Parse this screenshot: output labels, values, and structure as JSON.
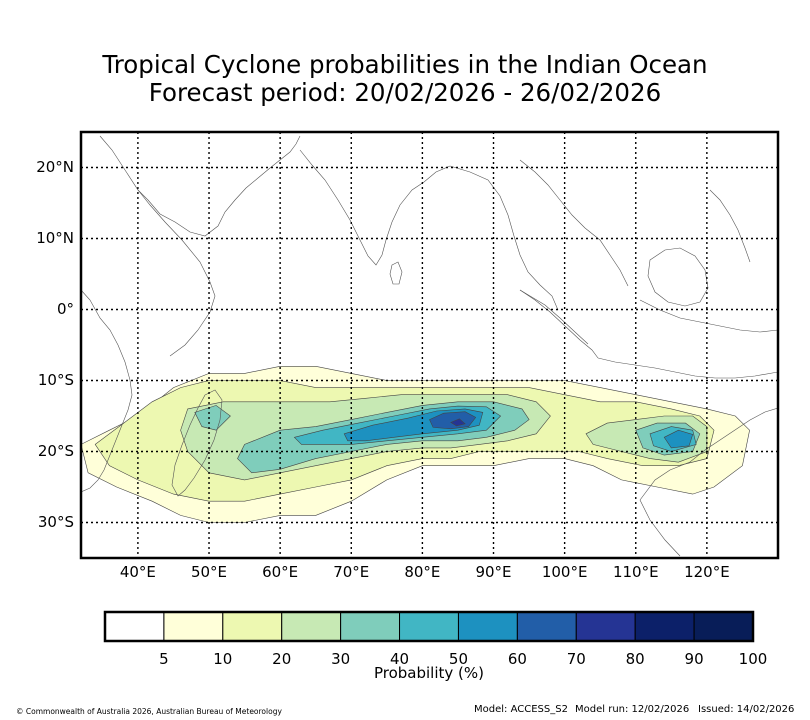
{
  "title": {
    "line1": "Tropical Cyclone probabilities in the Indian Ocean",
    "line2": "Forecast period: 20/02/2026 - 26/02/2026"
  },
  "map": {
    "lon_range": [
      32,
      130
    ],
    "lat_range": [
      -35,
      25
    ],
    "lon_ticks": [
      {
        "lon": 40,
        "label": "40°E"
      },
      {
        "lon": 50,
        "label": "50°E"
      },
      {
        "lon": 60,
        "label": "60°E"
      },
      {
        "lon": 70,
        "label": "70°E"
      },
      {
        "lon": 80,
        "label": "80°E"
      },
      {
        "lon": 90,
        "label": "90°E"
      },
      {
        "lon": 100,
        "label": "100°E"
      },
      {
        "lon": 110,
        "label": "110°E"
      },
      {
        "lon": 120,
        "label": "120°E"
      }
    ],
    "lat_ticks": [
      {
        "lat": 20,
        "label": "20°N"
      },
      {
        "lat": 10,
        "label": "10°N"
      },
      {
        "lat": 0,
        "label": "0°"
      },
      {
        "lat": -10,
        "label": "10°S"
      },
      {
        "lat": -20,
        "label": "20°S"
      },
      {
        "lat": -30,
        "label": "30°S"
      }
    ],
    "probability_regions": [
      {
        "level": 5,
        "color": "#ffffd9",
        "polygon": [
          [
            32,
            -19
          ],
          [
            36,
            -17
          ],
          [
            40,
            -15
          ],
          [
            45,
            -11
          ],
          [
            50,
            -9
          ],
          [
            55,
            -9
          ],
          [
            60,
            -8
          ],
          [
            65,
            -8
          ],
          [
            70,
            -9
          ],
          [
            75,
            -10
          ],
          [
            80,
            -10
          ],
          [
            85,
            -10
          ],
          [
            90,
            -10
          ],
          [
            95,
            -10
          ],
          [
            100,
            -10
          ],
          [
            105,
            -11
          ],
          [
            110,
            -12
          ],
          [
            115,
            -13
          ],
          [
            120,
            -14
          ],
          [
            124,
            -15
          ],
          [
            126,
            -17
          ],
          [
            125,
            -22
          ],
          [
            121,
            -25
          ],
          [
            118,
            -26
          ],
          [
            113,
            -25
          ],
          [
            108,
            -24
          ],
          [
            104,
            -22
          ],
          [
            100,
            -21
          ],
          [
            95,
            -21
          ],
          [
            90,
            -22
          ],
          [
            85,
            -22
          ],
          [
            80,
            -22
          ],
          [
            75,
            -24
          ],
          [
            70,
            -27
          ],
          [
            65,
            -29
          ],
          [
            60,
            -29
          ],
          [
            55,
            -30
          ],
          [
            50,
            -30
          ],
          [
            46,
            -29
          ],
          [
            42,
            -27
          ],
          [
            37,
            -25
          ],
          [
            33,
            -23
          ]
        ]
      },
      {
        "level": 10,
        "color": "#edf8b1",
        "polygon": [
          [
            34,
            -19
          ],
          [
            38,
            -16
          ],
          [
            42,
            -13
          ],
          [
            46,
            -11
          ],
          [
            50,
            -10
          ],
          [
            55,
            -10
          ],
          [
            60,
            -10
          ],
          [
            65,
            -11
          ],
          [
            70,
            -11
          ],
          [
            75,
            -11
          ],
          [
            80,
            -11
          ],
          [
            85,
            -11
          ],
          [
            90,
            -11
          ],
          [
            95,
            -11
          ],
          [
            100,
            -12
          ],
          [
            105,
            -13
          ],
          [
            110,
            -13
          ],
          [
            115,
            -14
          ],
          [
            119,
            -15
          ],
          [
            121,
            -17
          ],
          [
            120,
            -21
          ],
          [
            116,
            -22
          ],
          [
            111,
            -22
          ],
          [
            106,
            -21
          ],
          [
            102,
            -20
          ],
          [
            98,
            -20
          ],
          [
            93,
            -20
          ],
          [
            88,
            -20
          ],
          [
            84,
            -21
          ],
          [
            80,
            -21
          ],
          [
            75,
            -22
          ],
          [
            70,
            -24
          ],
          [
            65,
            -25
          ],
          [
            60,
            -26
          ],
          [
            55,
            -27
          ],
          [
            50,
            -27
          ],
          [
            45,
            -26
          ],
          [
            40,
            -24
          ],
          [
            36,
            -22
          ]
        ]
      },
      {
        "level": 20,
        "color": "#c7e9b4",
        "polygon": [
          [
            47,
            -14
          ],
          [
            52,
            -13
          ],
          [
            57,
            -13
          ],
          [
            62,
            -13
          ],
          [
            67,
            -13
          ],
          [
            72,
            -12.5
          ],
          [
            77,
            -12
          ],
          [
            82,
            -12
          ],
          [
            87,
            -12
          ],
          [
            92,
            -12
          ],
          [
            96,
            -13
          ],
          [
            98,
            -15
          ],
          [
            96,
            -17.5
          ],
          [
            92,
            -18.5
          ],
          [
            88,
            -19
          ],
          [
            84,
            -19.5
          ],
          [
            80,
            -19.5
          ],
          [
            75,
            -20
          ],
          [
            70,
            -21
          ],
          [
            65,
            -22
          ],
          [
            60,
            -23
          ],
          [
            55,
            -24
          ],
          [
            50,
            -23
          ],
          [
            47,
            -20
          ],
          [
            46,
            -17
          ]
        ]
      },
      {
        "level": 20,
        "color": "#c7e9b4",
        "polygon": [
          [
            103,
            -17.5
          ],
          [
            106,
            -16
          ],
          [
            110,
            -15.5
          ],
          [
            114,
            -15
          ],
          [
            118,
            -15
          ],
          [
            120,
            -16.5
          ],
          [
            120,
            -20
          ],
          [
            116,
            -21.5
          ],
          [
            112,
            -21
          ],
          [
            108,
            -20
          ],
          [
            104,
            -19
          ]
        ]
      },
      {
        "level": 30,
        "color": "#7fcdbb",
        "polygon": [
          [
            55,
            -19
          ],
          [
            60,
            -17
          ],
          [
            65,
            -16.5
          ],
          [
            70,
            -15.5
          ],
          [
            75,
            -14.5
          ],
          [
            80,
            -13.5
          ],
          [
            85,
            -13
          ],
          [
            90,
            -13
          ],
          [
            94,
            -14
          ],
          [
            95,
            -15.5
          ],
          [
            93,
            -17
          ],
          [
            89,
            -18
          ],
          [
            85,
            -18.5
          ],
          [
            80,
            -18.5
          ],
          [
            75,
            -19
          ],
          [
            70,
            -20
          ],
          [
            65,
            -21
          ],
          [
            60,
            -22.5
          ],
          [
            56,
            -23
          ],
          [
            54,
            -21
          ]
        ]
      },
      {
        "level": 30,
        "color": "#7fcdbb",
        "polygon": [
          [
            48,
            -14.5
          ],
          [
            51,
            -13.5
          ],
          [
            53,
            -15
          ],
          [
            51,
            -17
          ],
          [
            49,
            -16.5
          ]
        ]
      },
      {
        "level": 30,
        "color": "#7fcdbb",
        "polygon": [
          [
            110,
            -17
          ],
          [
            113,
            -16
          ],
          [
            117,
            -16
          ],
          [
            119,
            -17.5
          ],
          [
            118,
            -20
          ],
          [
            114,
            -20.5
          ],
          [
            111,
            -19.5
          ]
        ]
      },
      {
        "level": 40,
        "color": "#41b6c4",
        "polygon": [
          [
            62,
            -18
          ],
          [
            66,
            -17
          ],
          [
            71,
            -16
          ],
          [
            76,
            -15
          ],
          [
            81,
            -14
          ],
          [
            85,
            -13.6
          ],
          [
            89,
            -13.7
          ],
          [
            91,
            -15
          ],
          [
            89,
            -17
          ],
          [
            85,
            -17.5
          ],
          [
            80,
            -18
          ],
          [
            75,
            -18.5
          ],
          [
            70,
            -19
          ],
          [
            66,
            -19
          ],
          [
            63,
            -19
          ]
        ]
      },
      {
        "level": 40,
        "color": "#41b6c4",
        "polygon": [
          [
            112,
            -17.5
          ],
          [
            115,
            -16.5
          ],
          [
            118,
            -17
          ],
          [
            118.5,
            -19
          ],
          [
            115,
            -20
          ],
          [
            112.5,
            -19.2
          ]
        ]
      },
      {
        "level": 50,
        "color": "#1d91c0",
        "polygon": [
          [
            69,
            -17.5
          ],
          [
            73,
            -16.3
          ],
          [
            78,
            -15.3
          ],
          [
            82,
            -14.3
          ],
          [
            86,
            -14
          ],
          [
            88.5,
            -14.5
          ],
          [
            88,
            -16.3
          ],
          [
            85,
            -17
          ],
          [
            80,
            -17.5
          ],
          [
            76,
            -18
          ],
          [
            72,
            -18.5
          ],
          [
            69.5,
            -18.5
          ]
        ]
      },
      {
        "level": 50,
        "color": "#1d91c0",
        "polygon": [
          [
            114,
            -18
          ],
          [
            116,
            -17
          ],
          [
            118,
            -17.6
          ],
          [
            117.5,
            -19.2
          ],
          [
            115,
            -19.5
          ]
        ]
      },
      {
        "level": 60,
        "color": "#225ea8",
        "polygon": [
          [
            81,
            -15.5
          ],
          [
            83,
            -14.6
          ],
          [
            86,
            -14.4
          ],
          [
            87.5,
            -15.2
          ],
          [
            86.5,
            -16.5
          ],
          [
            84,
            -16.8
          ],
          [
            81.5,
            -16.6
          ]
        ]
      },
      {
        "level": 70,
        "color": "#253494",
        "polygon": [
          [
            84,
            -15.9
          ],
          [
            85.2,
            -15.4
          ],
          [
            86,
            -16.1
          ],
          [
            84.8,
            -16.4
          ]
        ]
      }
    ]
  },
  "colorbar": {
    "ticks": [
      "5",
      "10",
      "20",
      "30",
      "40",
      "50",
      "60",
      "70",
      "80",
      "90",
      "100"
    ],
    "colors": [
      "#ffffff",
      "#ffffd9",
      "#edf8b1",
      "#c7e9b4",
      "#7fcdbb",
      "#41b6c4",
      "#1d91c0",
      "#225ea8",
      "#253494",
      "#0c2069",
      "#081d58"
    ],
    "label": "Probability (%)"
  },
  "footer": {
    "copyright": "© Commonwealth of Australia 2026, Australian Bureau of Meteorology",
    "model": "Model: ACCESS_S2",
    "model_run": "Model run: 12/02/2026",
    "issued": "Issued: 14/02/2026"
  }
}
